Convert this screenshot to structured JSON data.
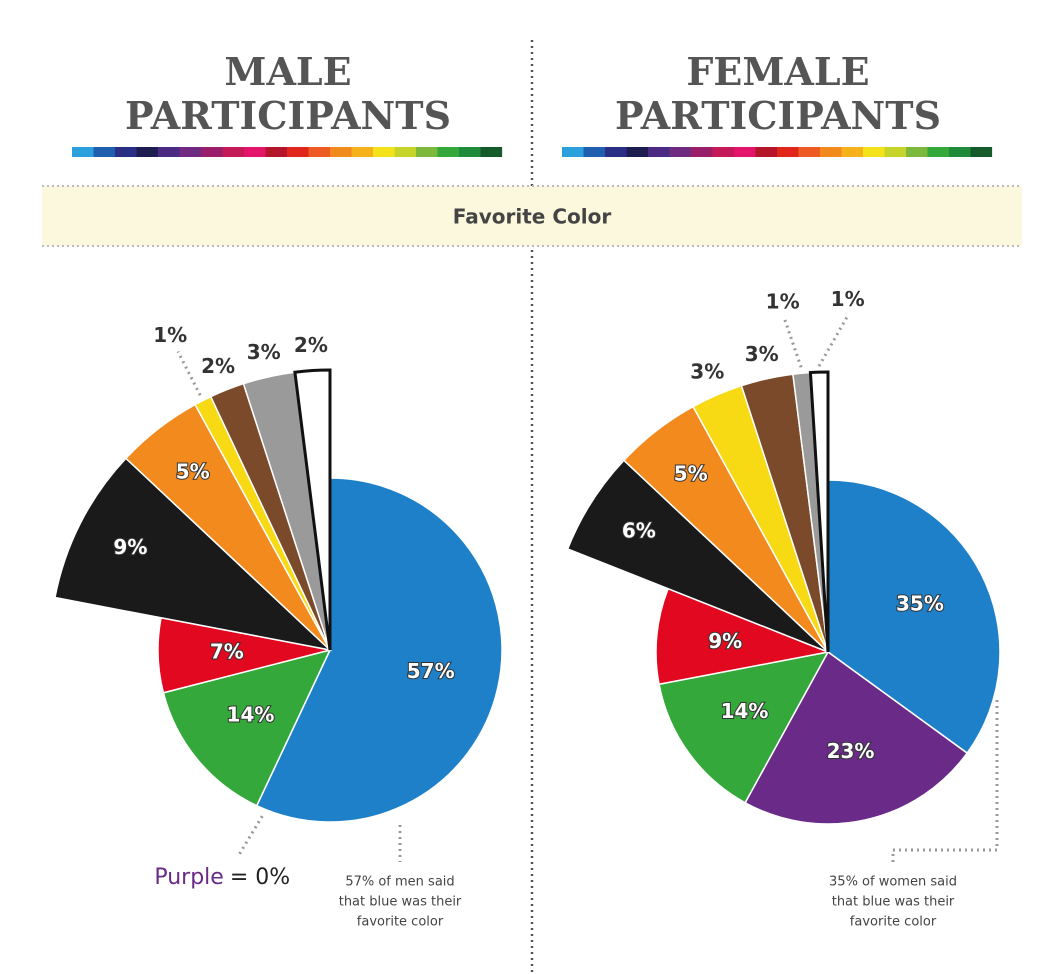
{
  "banner": "Favorite Color",
  "chart_data": [
    {
      "type": "pie",
      "title": "MALE PARTICIPANTS",
      "categories": [
        null,
        "Purple",
        null,
        null,
        null,
        null,
        null,
        null,
        null,
        null
      ],
      "values": [
        57,
        0,
        14,
        7,
        9,
        5,
        1,
        2,
        3,
        2
      ],
      "value_labels": [
        "57%",
        "= 0%",
        "14%",
        "7%",
        "9%",
        "5%",
        "1%",
        "2%",
        "3%",
        "2%"
      ],
      "colors": [
        "#1e80c8",
        "#6a2a88",
        "#34a83a",
        "#e1081f",
        "#1a1a1a",
        "#f28a1e",
        "#f7d914",
        "#7b4a2a",
        "#9a9a9a",
        "#ffffff"
      ],
      "note": [
        "57% of men said",
        "that blue was their",
        "favorite color"
      ]
    },
    {
      "type": "pie",
      "title": "FEMALE PARTICIPANTS",
      "values": [
        35,
        23,
        14,
        9,
        6,
        5,
        3,
        3,
        1,
        1
      ],
      "value_labels": [
        "35%",
        "23%",
        "14%",
        "9%",
        "6%",
        "5%",
        "3%",
        "3%",
        "1%",
        "1%"
      ],
      "colors": [
        "#1e80c8",
        "#6a2a88",
        "#34a83a",
        "#e1081f",
        "#1a1a1a",
        "#f28a1e",
        "#f7d914",
        "#7b4a2a",
        "#9a9a9a",
        "#ffffff"
      ],
      "note": [
        "35% of women said",
        "that blue was their",
        "favorite color"
      ]
    }
  ]
}
